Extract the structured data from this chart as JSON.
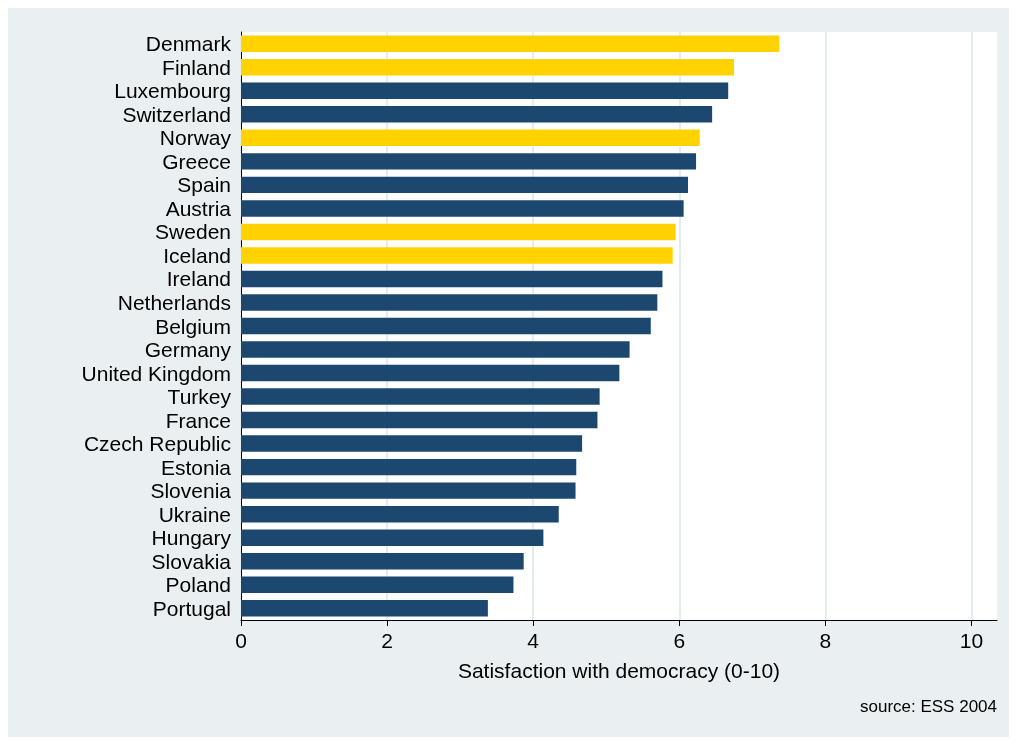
{
  "chart_data": {
    "type": "bar",
    "orientation": "horizontal",
    "xlabel": "Satisfaction with democracy (0-10)",
    "annotations": [
      "source: ESS 2004"
    ],
    "categories": [
      "Denmark",
      "Finland",
      "Luxembourg",
      "Switzerland",
      "Norway",
      "Greece",
      "Spain",
      "Austria",
      "Sweden",
      "Iceland",
      "Ireland",
      "Netherlands",
      "Belgium",
      "Germany",
      "United Kingdom",
      "Turkey",
      "France",
      "Czech Republic",
      "Estonia",
      "Slovenia",
      "Ukraine",
      "Hungary",
      "Slovakia",
      "Poland",
      "Portugal"
    ],
    "values": [
      7.37,
      6.75,
      6.67,
      6.45,
      6.28,
      6.23,
      6.12,
      6.06,
      5.95,
      5.91,
      5.77,
      5.7,
      5.61,
      5.32,
      5.18,
      4.91,
      4.88,
      4.67,
      4.59,
      4.58,
      4.35,
      4.14,
      3.87,
      3.73,
      3.38
    ],
    "colors": [
      "#ffd200",
      "#ffd200",
      "#1c4870",
      "#1c4870",
      "#ffd200",
      "#1c4870",
      "#1c4870",
      "#1c4870",
      "#ffd200",
      "#ffd200",
      "#1c4870",
      "#1c4870",
      "#1c4870",
      "#1c4870",
      "#1c4870",
      "#1c4870",
      "#1c4870",
      "#1c4870",
      "#1c4870",
      "#1c4870",
      "#1c4870",
      "#1c4870",
      "#1c4870",
      "#1c4870",
      "#1c4870"
    ],
    "xlim": [
      0,
      10.35
    ],
    "xticks": [
      0,
      2,
      4,
      6,
      8,
      10
    ],
    "grid": "x"
  }
}
